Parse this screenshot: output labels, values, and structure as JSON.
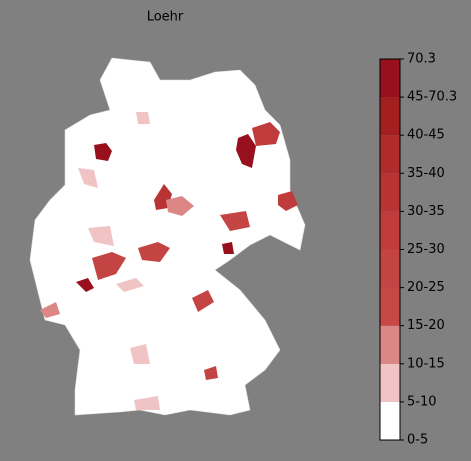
{
  "title": "Loehr",
  "colorbar": {
    "labels": [
      "0-5",
      "5-10",
      "10-15",
      "15-20",
      "20-25",
      "25-30",
      "30-35",
      "35-40",
      "40-45",
      "45-70.3",
      "70.3"
    ],
    "colors": [
      "#ffffff",
      "#f0c4c4",
      "#dc8686",
      "#c84848",
      "#c44444",
      "#c03c3c",
      "#b83434",
      "#b02c2c",
      "#a42020",
      "#98101e"
    ]
  }
}
